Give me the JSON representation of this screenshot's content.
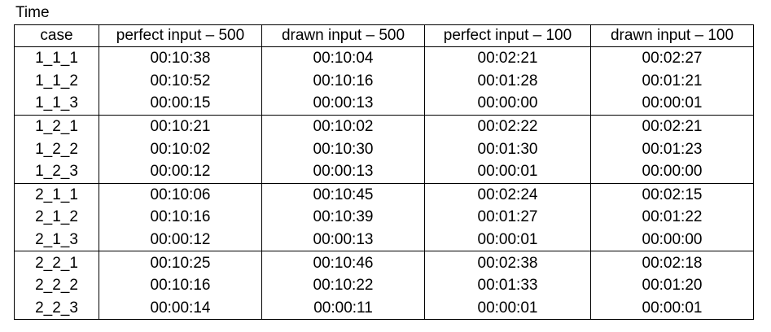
{
  "caption": "Time",
  "columns": [
    "case",
    "perfect input – 500",
    "drawn input – 500",
    "perfect input – 100",
    "drawn input – 100"
  ],
  "groups": [
    [
      [
        "1_1_1",
        "00:10:38",
        "00:10:04",
        "00:02:21",
        "00:02:27"
      ],
      [
        "1_1_2",
        "00:10:52",
        "00:10:16",
        "00:01:28",
        "00:01:21"
      ],
      [
        "1_1_3",
        "00:00:15",
        "00:00:13",
        "00:00:00",
        "00:00:01"
      ]
    ],
    [
      [
        "1_2_1",
        "00:10:21",
        "00:10:02",
        "00:02:22",
        "00:02:21"
      ],
      [
        "1_2_2",
        "00:10:02",
        "00:10:30",
        "00:01:30",
        "00:01:23"
      ],
      [
        "1_2_3",
        "00:00:12",
        "00:00:13",
        "00:00:01",
        "00:00:00"
      ]
    ],
    [
      [
        "2_1_1",
        "00:10:06",
        "00:10:45",
        "00:02:24",
        "00:02:15"
      ],
      [
        "2_1_2",
        "00:10:16",
        "00:10:39",
        "00:01:27",
        "00:01:22"
      ],
      [
        "2_1_3",
        "00:00:12",
        "00:00:13",
        "00:00:01",
        "00:00:00"
      ]
    ],
    [
      [
        "2_2_1",
        "00:10:25",
        "00:10:46",
        "00:02:38",
        "00:02:18"
      ],
      [
        "2_2_2",
        "00:10:16",
        "00:10:22",
        "00:01:33",
        "00:01:20"
      ],
      [
        "2_2_3",
        "00:00:14",
        "00:00:11",
        "00:00:01",
        "00:00:01"
      ]
    ]
  ]
}
